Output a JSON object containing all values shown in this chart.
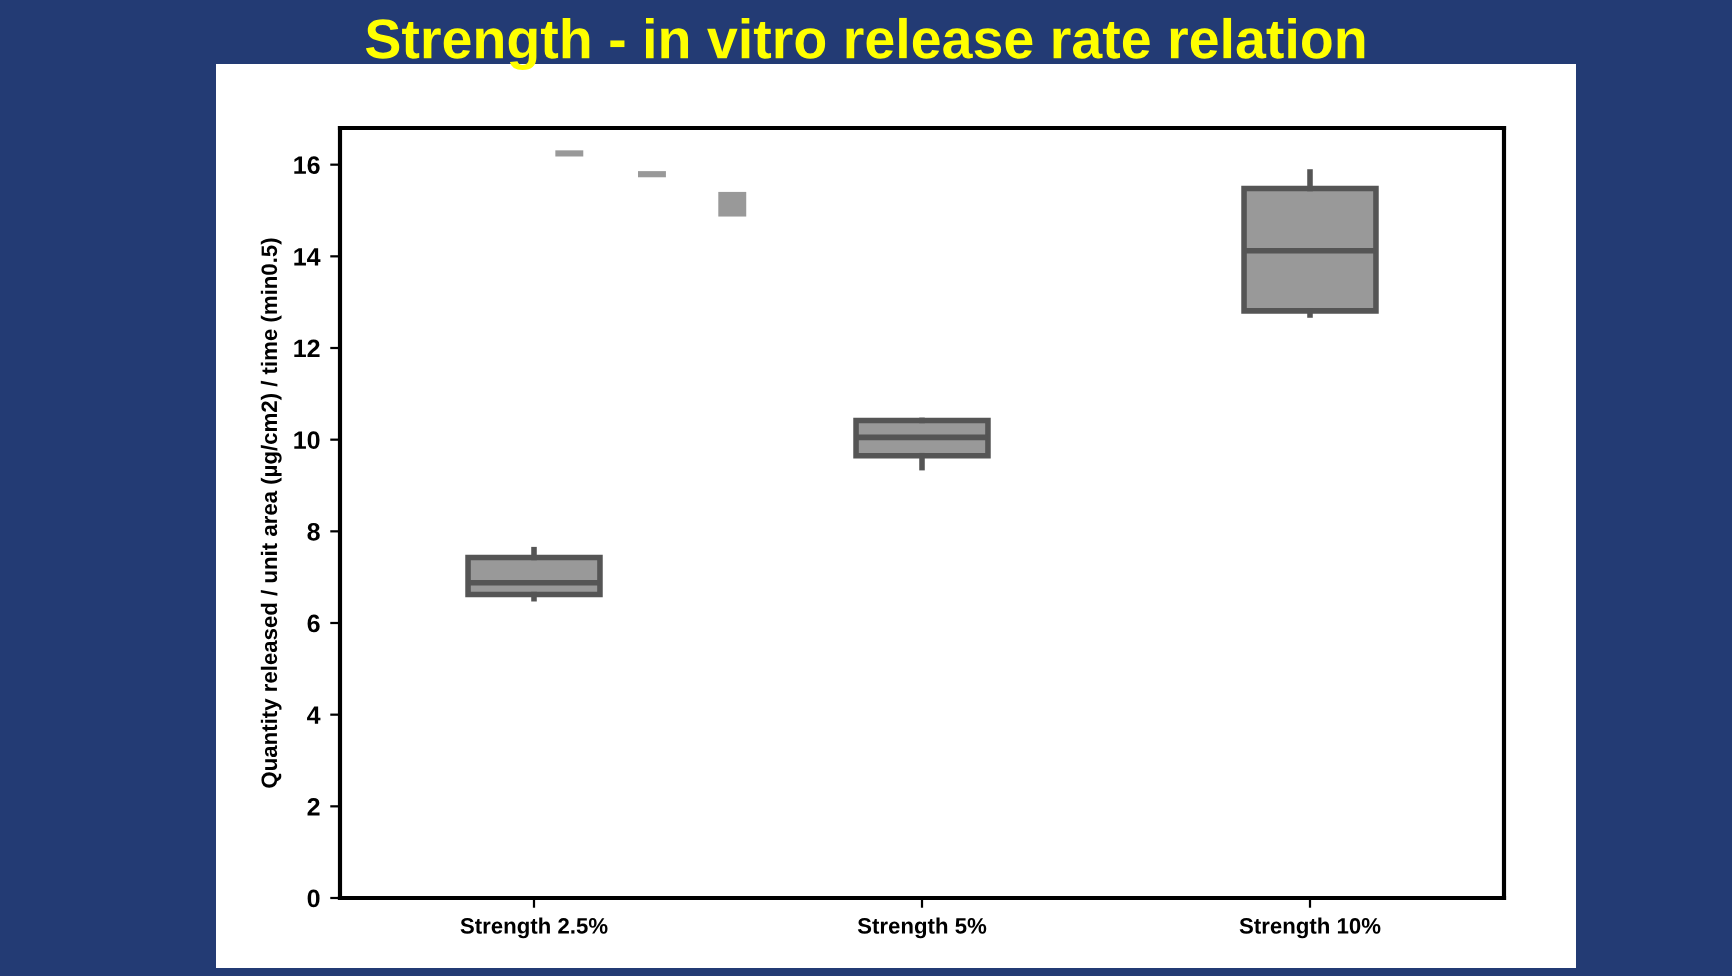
{
  "chart_data": {
    "type": "box",
    "title": "Strength - in vitro release rate relation",
    "ylabel": "Quantity released / unit area (µg/cm2) / time (min0.5)",
    "categories": [
      "Strength 2.5%",
      "Strength 5%",
      "Strength 10%"
    ],
    "boxes": [
      {
        "low": 6.53,
        "q1": 6.62,
        "median": 6.88,
        "q3": 7.43,
        "high": 7.6
      },
      {
        "low": 9.39,
        "q1": 9.65,
        "median": 10.05,
        "q3": 10.42,
        "high": 10.42
      },
      {
        "low": 12.72,
        "q1": 12.81,
        "median": 14.12,
        "q3": 15.48,
        "high": 15.84
      }
    ],
    "color": "#999999",
    "ylim": [
      0,
      16.8
    ],
    "yticks": [
      0,
      2,
      4,
      6,
      8,
      10,
      12,
      14,
      16
    ],
    "grid": false
  }
}
